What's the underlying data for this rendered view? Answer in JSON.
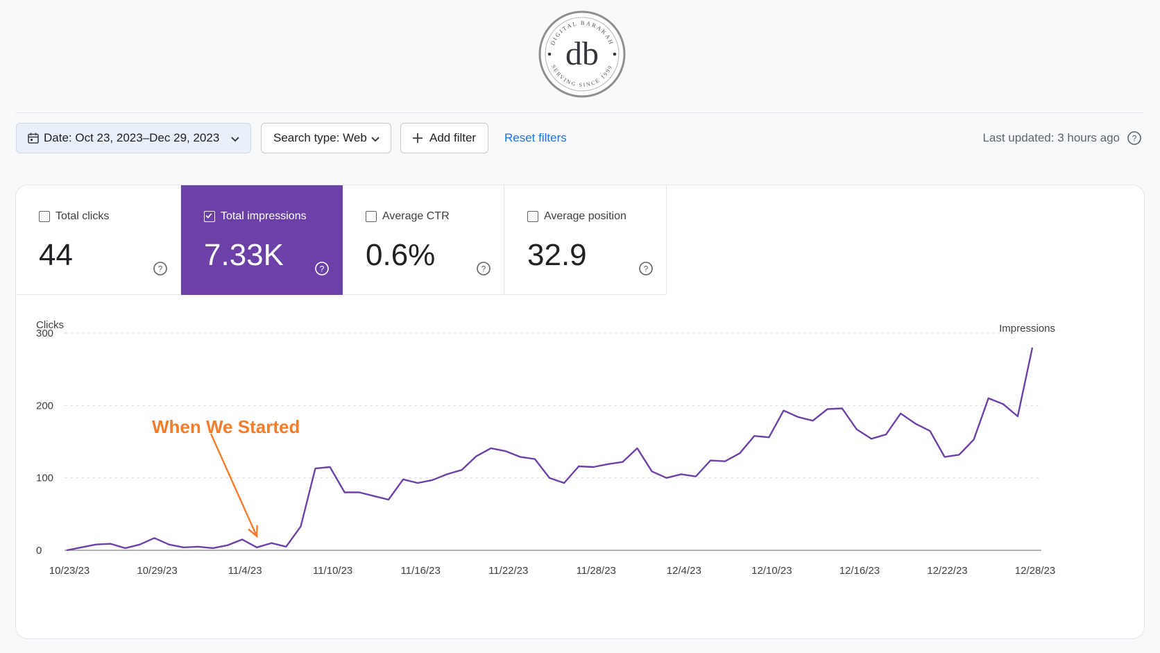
{
  "logo": {
    "mark": "db",
    "ring_top": "DIGITAL BARAKAH",
    "ring_bottom": "SERVING SINCE 1999"
  },
  "toolbar": {
    "date_label": "Date: Oct 23, 2023–Dec 29, 2023",
    "search_type_label": "Search type: Web",
    "add_filter_label": "Add filter",
    "reset_label": "Reset filters",
    "last_updated": "Last updated: 3 hours ago"
  },
  "metrics": [
    {
      "label": "Total clicks",
      "value": "44",
      "checked": false
    },
    {
      "label": "Total impressions",
      "value": "7.33K",
      "checked": true
    },
    {
      "label": "Average CTR",
      "value": "0.6%",
      "checked": false
    },
    {
      "label": "Average position",
      "value": "32.9",
      "checked": false
    }
  ],
  "colors": {
    "accent": "#6c41a7",
    "link": "#1a73e8",
    "annotation": "#f57c2b"
  },
  "chart_data": {
    "type": "line",
    "ylabel": "Clicks",
    "y2label": "Impressions",
    "yticks": [
      "0",
      "100",
      "200",
      "300"
    ],
    "ylim": [
      0,
      300
    ],
    "xticks": [
      "10/23/23",
      "10/29/23",
      "11/4/23",
      "11/10/23",
      "11/16/23",
      "11/22/23",
      "11/28/23",
      "12/4/23",
      "12/10/23",
      "12/16/23",
      "12/22/23",
      "12/28/23"
    ],
    "grid": true,
    "annotation": {
      "text": "When We Started",
      "x": "11/5/23"
    },
    "series": [
      {
        "color": "#6c41a7",
        "x": [
          "10/23/23",
          "10/24/23",
          "10/25/23",
          "10/26/23",
          "10/27/23",
          "10/28/23",
          "10/29/23",
          "10/30/23",
          "10/31/23",
          "11/1/23",
          "11/2/23",
          "11/3/23",
          "11/4/23",
          "11/5/23",
          "11/6/23",
          "11/7/23",
          "11/8/23",
          "11/9/23",
          "11/10/23",
          "11/11/23",
          "11/12/23",
          "11/13/23",
          "11/14/23",
          "11/15/23",
          "11/16/23",
          "11/17/23",
          "11/18/23",
          "11/19/23",
          "11/20/23",
          "11/21/23",
          "11/22/23",
          "11/23/23",
          "11/24/23",
          "11/25/23",
          "11/26/23",
          "11/27/23",
          "11/28/23",
          "11/29/23",
          "11/30/23",
          "12/1/23",
          "12/2/23",
          "12/3/23",
          "12/4/23",
          "12/5/23",
          "12/6/23",
          "12/7/23",
          "12/8/23",
          "12/9/23",
          "12/10/23",
          "12/11/23",
          "12/12/23",
          "12/13/23",
          "12/14/23",
          "12/15/23",
          "12/16/23",
          "12/17/23",
          "12/18/23",
          "12/19/23",
          "12/20/23",
          "12/21/23",
          "12/22/23",
          "12/23/23",
          "12/24/23",
          "12/25/23",
          "12/26/23",
          "12/27/23",
          "12/28/23"
        ],
        "values": [
          0,
          4,
          8,
          9,
          3,
          8,
          17,
          8,
          4,
          5,
          3,
          7,
          15,
          4,
          10,
          5,
          33,
          113,
          115,
          80,
          80,
          75,
          70,
          98,
          93,
          97,
          105,
          111,
          130,
          141,
          137,
          129,
          126,
          100,
          93,
          116,
          115,
          119,
          122,
          141,
          109,
          100,
          105,
          102,
          124,
          123,
          134,
          158,
          156,
          193,
          184,
          179,
          195,
          196,
          167,
          154,
          160,
          189,
          175,
          165,
          129,
          132,
          153,
          210,
          202,
          185,
          280
        ]
      }
    ]
  }
}
